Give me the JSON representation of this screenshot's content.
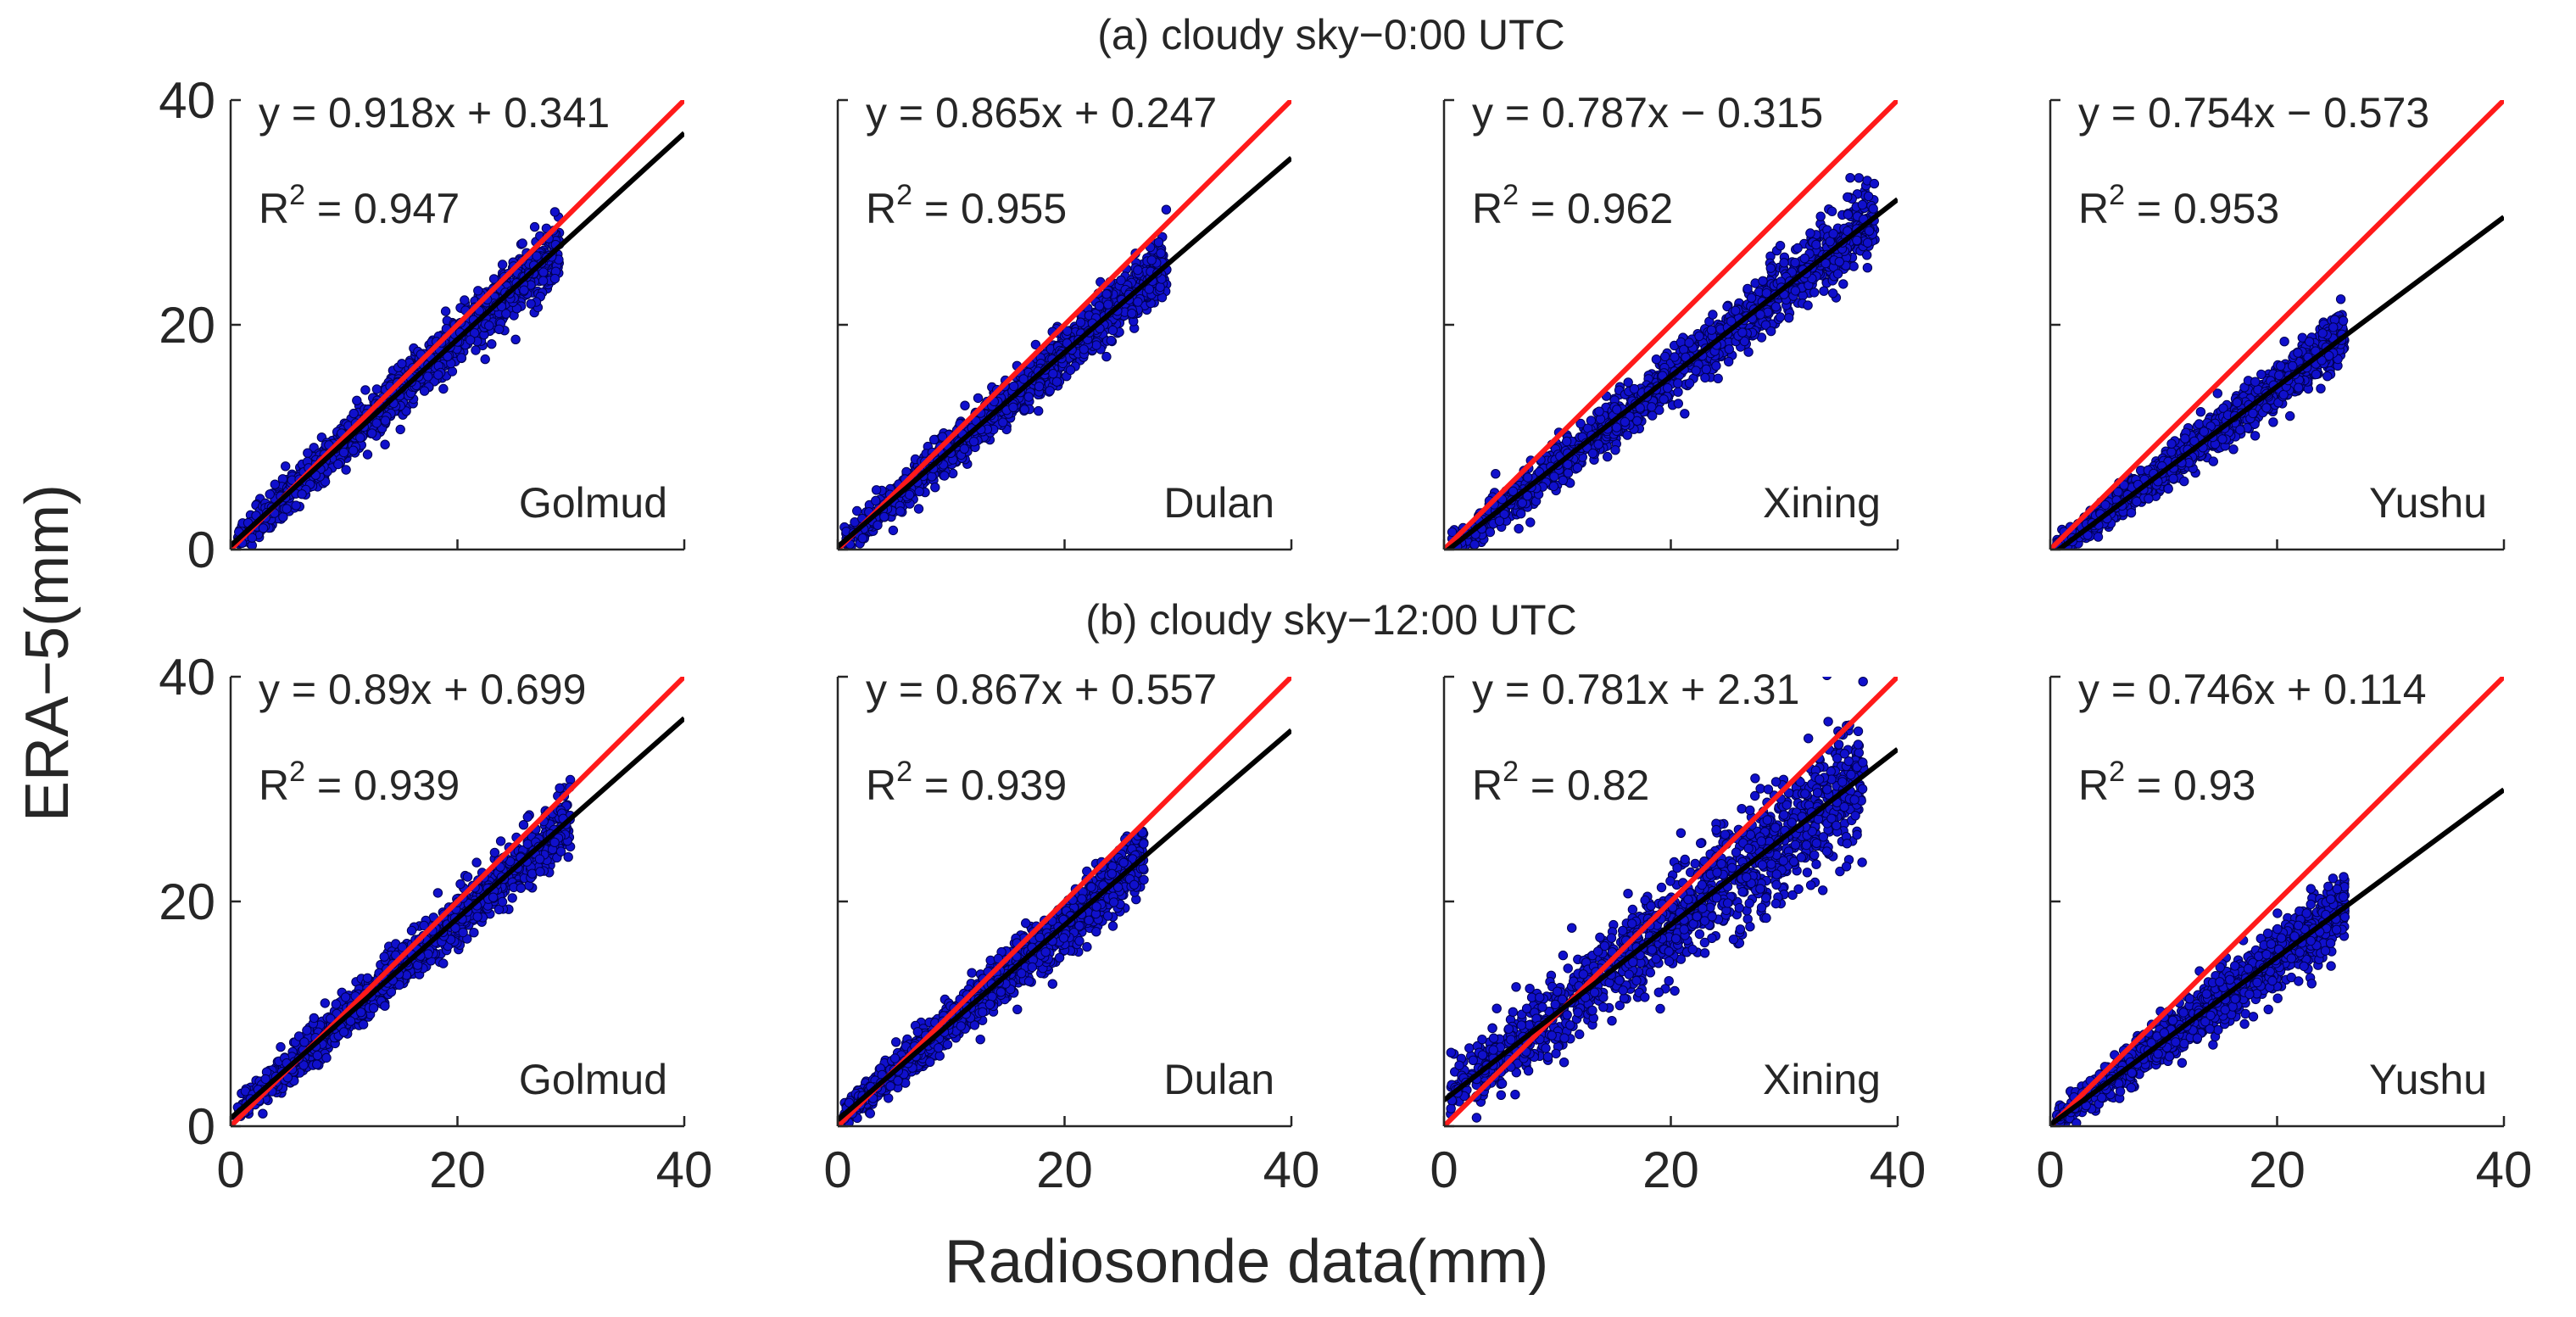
{
  "figure": {
    "ylabel": "ERA−5(mm)",
    "xlabel": "Radiosonde data(mm)",
    "row_titles": [
      "(a) cloudy sky−0:00 UTC",
      "(b) cloudy sky−12:00 UTC"
    ]
  },
  "colors": {
    "points": "#1010cc",
    "point_edge": "#000050",
    "fit_line": "#000000",
    "one_to_one_line": "#ff1a1a",
    "axis": "#262626"
  },
  "chart_data": [
    {
      "type": "scatter",
      "row": "(a) cloudy sky−0:00 UTC",
      "station": "Golmud",
      "fit": {
        "slope": 0.918,
        "intercept": 0.341
      },
      "equation": "y = 0.918x + 0.341",
      "r2": "0.947",
      "xlim": [
        0,
        40
      ],
      "ylim": [
        0,
        40
      ],
      "x_range": [
        0.5,
        29
      ],
      "spread": 1.2,
      "xticks": [
        "0",
        "20",
        "40"
      ],
      "yticks": [
        "0",
        "20",
        "40"
      ],
      "show_yticklabels": true,
      "show_xticklabels": false
    },
    {
      "type": "scatter",
      "row": "(a) cloudy sky−0:00 UTC",
      "station": "Dulan",
      "fit": {
        "slope": 0.865,
        "intercept": 0.247
      },
      "equation": "y = 0.865x + 0.247",
      "r2": "0.955",
      "xlim": [
        0,
        40
      ],
      "ylim": [
        0,
        40
      ],
      "x_range": [
        0.5,
        29
      ],
      "spread": 1.1,
      "xticks": [
        "0",
        "20",
        "40"
      ],
      "yticks": [
        "0",
        "20",
        "40"
      ],
      "show_yticklabels": false,
      "show_xticklabels": false
    },
    {
      "type": "scatter",
      "row": "(a) cloudy sky−0:00 UTC",
      "station": "Xining",
      "fit": {
        "slope": 0.787,
        "intercept": -0.315
      },
      "equation": "y = 0.787x − 0.315",
      "r2": "0.962",
      "xlim": [
        0,
        40
      ],
      "ylim": [
        0,
        40
      ],
      "x_range": [
        0.5,
        38
      ],
      "spread": 1.4,
      "xticks": [
        "0",
        "20",
        "40"
      ],
      "yticks": [
        "0",
        "20",
        "40"
      ],
      "show_yticklabels": false,
      "show_xticklabels": false
    },
    {
      "type": "scatter",
      "row": "(a) cloudy sky−0:00 UTC",
      "station": "Yushu",
      "fit": {
        "slope": 0.754,
        "intercept": -0.573
      },
      "equation": "y = 0.754x − 0.573",
      "r2": "0.953",
      "xlim": [
        0,
        40
      ],
      "ylim": [
        0,
        40
      ],
      "x_range": [
        0.5,
        26
      ],
      "spread": 0.9,
      "xticks": [
        "0",
        "20",
        "40"
      ],
      "yticks": [
        "0",
        "20",
        "40"
      ],
      "show_yticklabels": false,
      "show_xticklabels": false
    },
    {
      "type": "scatter",
      "row": "(b) cloudy sky−12:00 UTC",
      "station": "Golmud",
      "fit": {
        "slope": 0.89,
        "intercept": 0.699
      },
      "equation": "y = 0.89x + 0.699",
      "r2": "0.939",
      "xlim": [
        0,
        40
      ],
      "ylim": [
        0,
        40
      ],
      "x_range": [
        0.5,
        30
      ],
      "spread": 1.2,
      "xticks": [
        "0",
        "20",
        "40"
      ],
      "yticks": [
        "0",
        "20",
        "40"
      ],
      "show_yticklabels": true,
      "show_xticklabels": true
    },
    {
      "type": "scatter",
      "row": "(b) cloudy sky−12:00 UTC",
      "station": "Dulan",
      "fit": {
        "slope": 0.867,
        "intercept": 0.557
      },
      "equation": "y = 0.867x + 0.557",
      "r2": "0.939",
      "xlim": [
        0,
        40
      ],
      "ylim": [
        0,
        40
      ],
      "x_range": [
        0.5,
        27
      ],
      "spread": 1.2,
      "xticks": [
        "0",
        "20",
        "40"
      ],
      "yticks": [
        "0",
        "20",
        "40"
      ],
      "show_yticklabels": false,
      "show_xticklabels": true
    },
    {
      "type": "scatter",
      "row": "(b) cloudy sky−12:00 UTC",
      "station": "Xining",
      "fit": {
        "slope": 0.781,
        "intercept": 2.31
      },
      "equation": "y = 0.781x + 2.31",
      "r2": "0.82",
      "xlim": [
        0,
        40
      ],
      "ylim": [
        0,
        40
      ],
      "x_range": [
        0.5,
        37
      ],
      "spread": 2.8,
      "xticks": [
        "0",
        "20",
        "40"
      ],
      "yticks": [
        "0",
        "20",
        "40"
      ],
      "show_yticklabels": false,
      "show_xticklabels": true
    },
    {
      "type": "scatter",
      "row": "(b) cloudy sky−12:00 UTC",
      "station": "Yushu",
      "fit": {
        "slope": 0.746,
        "intercept": 0.114
      },
      "equation": "y = 0.746x + 0.114",
      "r2": "0.93",
      "xlim": [
        0,
        40
      ],
      "ylim": [
        0,
        40
      ],
      "x_range": [
        0.5,
        26
      ],
      "spread": 1.3,
      "xticks": [
        "0",
        "20",
        "40"
      ],
      "yticks": [
        "0",
        "20",
        "40"
      ],
      "show_yticklabels": false,
      "show_xticklabels": true
    }
  ]
}
